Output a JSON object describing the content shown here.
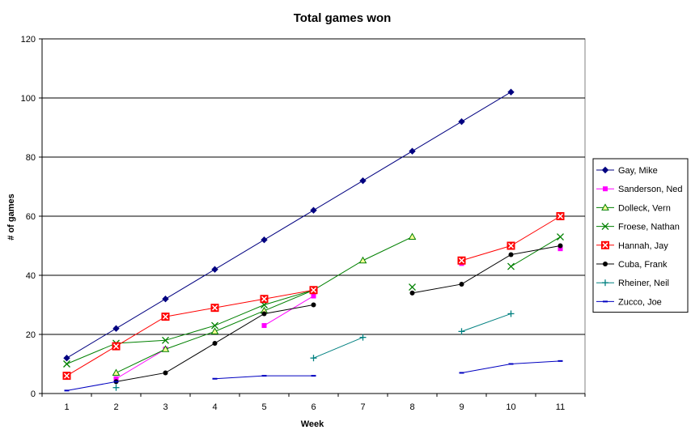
{
  "chart_data": {
    "type": "line",
    "title": "Total games won",
    "xlabel": "Week",
    "ylabel": "# of games",
    "ylim": [
      0,
      120
    ],
    "yticks": [
      0,
      20,
      40,
      60,
      80,
      100,
      120
    ],
    "categories": [
      "1",
      "2",
      "3",
      "4",
      "5",
      "6",
      "7",
      "8",
      "9",
      "10",
      "11"
    ],
    "grid": "horizontal",
    "legend_position": "right",
    "series": [
      {
        "name": "Gay, Mike",
        "color": "#000080",
        "marker": "diamond",
        "values": [
          12,
          22,
          32,
          42,
          52,
          62,
          72,
          82,
          92,
          102,
          null
        ]
      },
      {
        "name": "Sanderson, Ned",
        "color": "#ff00ff",
        "marker": "square",
        "values": [
          null,
          5,
          15,
          null,
          23,
          33,
          null,
          null,
          44,
          null,
          49
        ]
      },
      {
        "name": "Dolleck, Vern",
        "color": "#008000",
        "marker": "triangle",
        "values": [
          null,
          7,
          15,
          21,
          28,
          35,
          45,
          53,
          null,
          null,
          null
        ]
      },
      {
        "name": "Froese, Nathan",
        "color": "#008000",
        "marker": "x",
        "values": [
          10,
          17,
          18,
          23,
          30,
          35,
          null,
          36,
          null,
          43,
          53
        ]
      },
      {
        "name": "Hannah, Jay",
        "color": "#ff0000",
        "marker": "boxed-x",
        "values": [
          6,
          16,
          26,
          29,
          32,
          35,
          null,
          null,
          45,
          50,
          60
        ]
      },
      {
        "name": "Cuba, Frank",
        "color": "#000000",
        "marker": "circle",
        "values": [
          null,
          4,
          7,
          17,
          27,
          30,
          null,
          34,
          37,
          47,
          50
        ]
      },
      {
        "name": "Rheiner, Neil",
        "color": "#008080",
        "marker": "plus",
        "values": [
          null,
          2,
          null,
          null,
          null,
          12,
          19,
          null,
          21,
          27,
          null
        ]
      },
      {
        "name": "Zucco, Joe",
        "color": "#0000c0",
        "marker": "dash",
        "values": [
          1,
          4,
          null,
          5,
          6,
          6,
          null,
          null,
          7,
          10,
          11
        ]
      }
    ]
  }
}
